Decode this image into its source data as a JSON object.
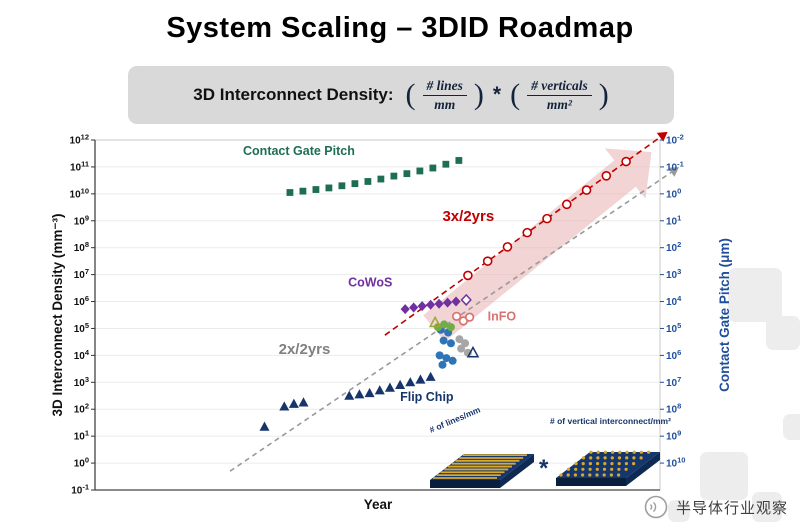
{
  "header": {
    "title": "System Scaling – 3DID Roadmap"
  },
  "formula": {
    "label": "3D Interconnect Density:",
    "open": "(",
    "close": ")",
    "num1": "# lines",
    "den1": "mm",
    "star": "*",
    "num2": "# verticals",
    "den2": "mm²"
  },
  "watermark": {
    "text": "半导体行业观察"
  },
  "chart_data": {
    "type": "scatter",
    "title": "System Scaling – 3DID Roadmap",
    "xlabel": "Year",
    "grid": true,
    "axes": {
      "x_title": "Year",
      "left_title": "3D Interconnect Density (mm⁻³)",
      "right_title": "Contact Gate Pitch (μm)",
      "left_scale": "log",
      "right_scale": "log-inverted",
      "left_exponents": [
        12,
        11,
        10,
        9,
        8,
        7,
        6,
        5,
        4,
        3,
        2,
        1,
        0,
        -1
      ],
      "right_exponents": [
        -2,
        -1,
        0,
        1,
        2,
        3,
        4,
        5,
        6,
        7,
        8,
        9,
        10
      ],
      "left_color": "#111111",
      "right_color": "#1f4e9c"
    },
    "series": [
      {
        "name": "Contact Gate Pitch",
        "marker": "square",
        "color": "#1e6e52",
        "axis": "right",
        "label": {
          "text": "Contact Gate Pitch",
          "x": 0.262,
          "exp": 11.45,
          "color": "#1e6e52",
          "size": 12.5
        },
        "points": [
          [
            0.345,
            -0.05
          ],
          [
            0.368,
            -0.1
          ],
          [
            0.391,
            -0.16
          ],
          [
            0.414,
            -0.22
          ],
          [
            0.437,
            -0.3
          ],
          [
            0.46,
            -0.38
          ],
          [
            0.483,
            -0.46
          ],
          [
            0.506,
            -0.55
          ],
          [
            0.529,
            -0.66
          ],
          [
            0.552,
            -0.75
          ],
          [
            0.575,
            -0.85
          ],
          [
            0.598,
            -0.96
          ],
          [
            0.621,
            -1.1
          ],
          [
            0.644,
            -1.24
          ]
        ]
      },
      {
        "name": "Flip Chip",
        "marker": "triangle",
        "color": "#17356b",
        "axis": "left",
        "label": {
          "text": "Flip Chip",
          "x": 0.54,
          "exp": 2.3,
          "color": "#17356b",
          "size": 12.5
        },
        "points": [
          [
            0.3,
            1.35
          ],
          [
            0.335,
            2.1
          ],
          [
            0.352,
            2.2
          ],
          [
            0.369,
            2.25
          ],
          [
            0.45,
            2.5
          ],
          [
            0.468,
            2.55
          ],
          [
            0.486,
            2.6
          ],
          [
            0.504,
            2.7
          ],
          [
            0.522,
            2.8
          ],
          [
            0.54,
            2.9
          ],
          [
            0.558,
            3.0
          ],
          [
            0.576,
            3.1
          ],
          [
            0.594,
            3.2
          ]
        ]
      },
      {
        "name": "CoWoS",
        "marker": "diamond",
        "color": "#7030a0",
        "axis": "left",
        "label": {
          "text": "CoWoS",
          "x": 0.448,
          "exp": 6.55,
          "color": "#7030a0",
          "size": 12.5
        },
        "points": [
          [
            0.549,
            5.72
          ],
          [
            0.564,
            5.78
          ],
          [
            0.579,
            5.83
          ],
          [
            0.594,
            5.88
          ],
          [
            0.609,
            5.92
          ],
          [
            0.624,
            5.96
          ],
          [
            0.639,
            6.0
          ]
        ]
      },
      {
        "name": "CoWoS projected",
        "marker": "diamond-open",
        "color": "#7030a0",
        "axis": "left",
        "points": [
          [
            0.657,
            6.06
          ]
        ]
      },
      {
        "name": "InFO",
        "marker": "circle-open",
        "color": "#d9736f",
        "axis": "left",
        "label": {
          "text": "InFO",
          "x": 0.695,
          "exp": 5.3,
          "color": "#d9736f",
          "size": 12.5
        },
        "points": [
          [
            0.64,
            5.45
          ],
          [
            0.652,
            5.28
          ],
          [
            0.663,
            5.42
          ]
        ]
      },
      {
        "name": "blue-circles",
        "marker": "circle",
        "color": "#2e75b6",
        "axis": "left",
        "points": [
          [
            0.612,
            4.95
          ],
          [
            0.625,
            4.85
          ],
          [
            0.617,
            4.55
          ],
          [
            0.63,
            4.45
          ],
          [
            0.61,
            4.0
          ],
          [
            0.622,
            3.9
          ],
          [
            0.633,
            3.8
          ],
          [
            0.615,
            3.65
          ]
        ]
      },
      {
        "name": "gray-circles",
        "marker": "circle",
        "color": "#a6a6a6",
        "axis": "left",
        "points": [
          [
            0.645,
            4.6
          ],
          [
            0.655,
            4.45
          ],
          [
            0.648,
            4.25
          ],
          [
            0.66,
            4.1
          ]
        ]
      },
      {
        "name": "green-circles",
        "marker": "circle",
        "color": "#70ad47",
        "axis": "left",
        "points": [
          [
            0.618,
            5.15
          ],
          [
            0.63,
            5.05
          ],
          [
            0.607,
            5.05
          ]
        ]
      },
      {
        "name": "yellow-green-triangle",
        "marker": "triangle-open",
        "color": "#9aaa30",
        "axis": "left",
        "points": [
          [
            0.602,
            5.22
          ]
        ]
      },
      {
        "name": "navy-triangle-open",
        "marker": "triangle-open",
        "color": "#17356b",
        "axis": "left",
        "points": [
          [
            0.669,
            4.1
          ]
        ]
      }
    ],
    "trends": [
      {
        "name": "3x/2yrs",
        "color": "#c00000",
        "dash": "6 4",
        "start": [
          0.513,
          4.75
        ],
        "end": [
          1.0,
          12.1
        ],
        "label": {
          "text": "3x/2yrs",
          "x": 0.615,
          "exp": 9.0,
          "color": "#c00000",
          "size": 15
        },
        "markers": [
          [
            0.66,
            6.97
          ],
          [
            0.695,
            7.5
          ],
          [
            0.73,
            8.03
          ],
          [
            0.765,
            8.56
          ],
          [
            0.8,
            9.08
          ],
          [
            0.835,
            9.61
          ],
          [
            0.87,
            10.14
          ],
          [
            0.905,
            10.67
          ],
          [
            0.94,
            11.2
          ]
        ]
      },
      {
        "name": "2x/2yrs",
        "color": "#999999",
        "dash": "5 4",
        "start": [
          0.239,
          -0.3
        ],
        "end": [
          1.02,
          10.8
        ],
        "label": {
          "text": "2x/2yrs",
          "x": 0.325,
          "exp": 4.05,
          "color": "#808080",
          "size": 15
        }
      }
    ],
    "band_arrow": {
      "color": "#e8a9a9",
      "opacity": 0.5,
      "start": [
        0.6,
        5.0
      ],
      "end": [
        0.985,
        11.55
      ],
      "width": 34
    },
    "insets": {
      "lines_label": "# of lines/mm",
      "verticals_label": "# of vertical interconnect/mm²",
      "star": "*"
    }
  }
}
